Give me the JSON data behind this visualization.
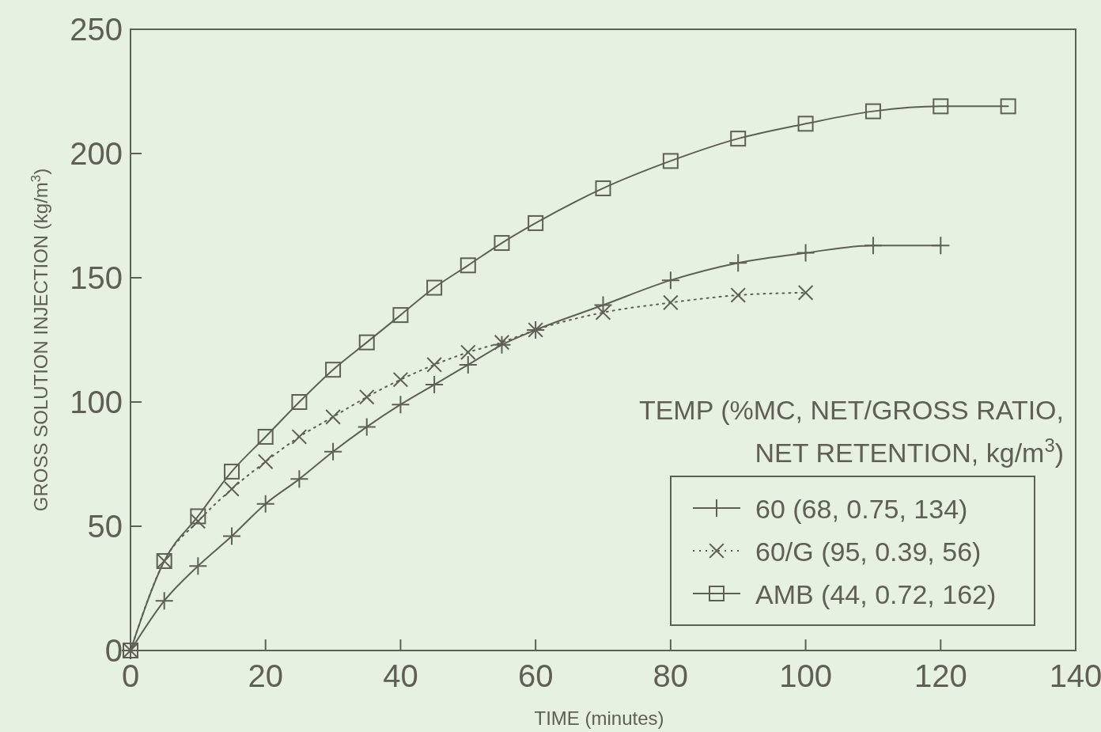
{
  "chart_data": {
    "type": "line",
    "xlabel": "TIME  (minutes)",
    "ylabel": "GROSS SOLUTION INJECTION  (kg/m$^{3}$)",
    "legend_title": "TEMP (%MC, NET/GROSS RATIO, NET RETENTION, kg/m$^{3}$)",
    "xlim": [
      0,
      140
    ],
    "xticks": [
      0,
      20,
      40,
      60,
      80,
      100,
      120,
      140
    ],
    "ylim": [
      0,
      250
    ],
    "yticks": [
      0,
      50,
      100,
      150,
      200,
      250
    ],
    "grid": false,
    "legend": "bottom right",
    "series": [
      {
        "name": "60 (68, 0.75, 134)",
        "color": "#5f5f55",
        "marker": "cross",
        "line_style": "solid",
        "x": [
          0,
          5,
          10,
          15,
          20,
          25,
          30,
          35,
          40,
          45,
          50,
          55,
          60,
          70,
          80,
          90,
          100,
          110,
          120
        ],
        "values": [
          0,
          20,
          34,
          46,
          59,
          69,
          80,
          90,
          99,
          107,
          115,
          123,
          129,
          139,
          149,
          156,
          160,
          163,
          163
        ]
      },
      {
        "name": "60/G (95, 0.39, 56)",
        "color": "#5f5f55",
        "marker": "x",
        "line_style": "dotted",
        "x": [
          0,
          5,
          10,
          15,
          20,
          25,
          30,
          35,
          40,
          45,
          50,
          55,
          60,
          70,
          80,
          90,
          100
        ],
        "values": [
          0,
          36,
          52,
          65,
          76,
          86,
          94,
          102,
          109,
          115,
          120,
          124,
          129,
          136,
          140,
          143,
          144
        ]
      },
      {
        "name": "AMB (44, 0.72, 162)",
        "color": "#5f5f55",
        "marker": "square",
        "line_style": "solid",
        "x": [
          0,
          5,
          10,
          15,
          20,
          25,
          30,
          35,
          40,
          45,
          50,
          55,
          60,
          70,
          80,
          90,
          100,
          110,
          120,
          130
        ],
        "values": [
          0,
          36,
          54,
          72,
          86,
          100,
          113,
          124,
          135,
          146,
          155,
          164,
          172,
          186,
          197,
          206,
          212,
          217,
          219,
          219
        ]
      }
    ]
  }
}
